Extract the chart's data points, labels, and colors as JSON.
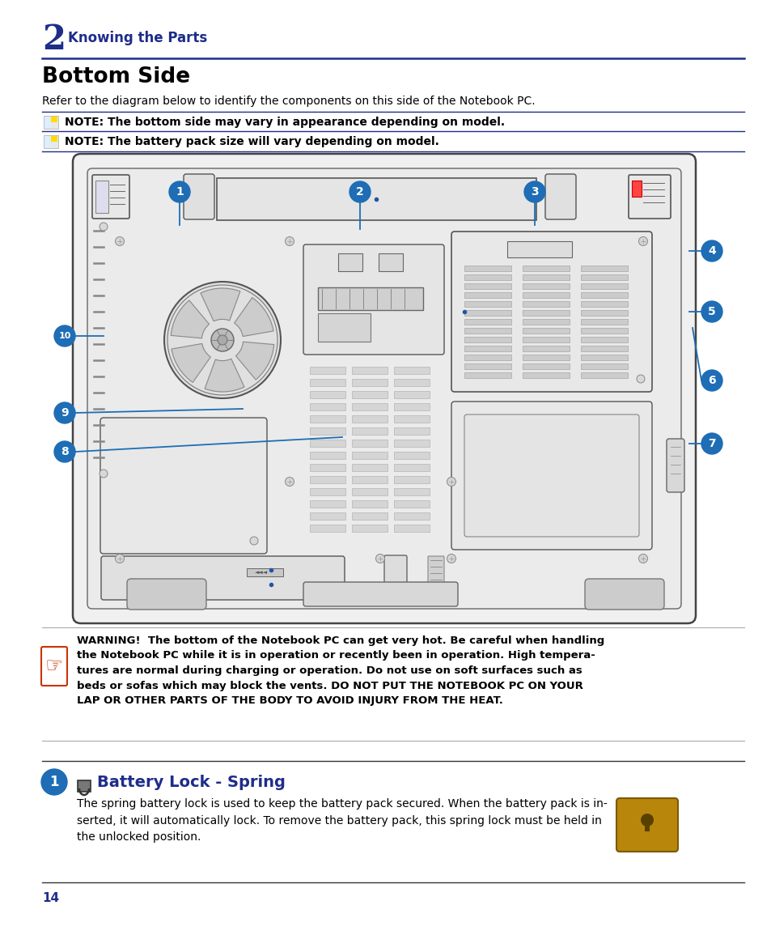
{
  "bg_color": "#ffffff",
  "page_width": 9.54,
  "page_height": 11.55,
  "chapter_number": "2",
  "chapter_title": "Knowing the Parts",
  "section_title": "Bottom Side",
  "section_subtitle": "Refer to the diagram below to identify the components on this side of the Notebook PC.",
  "note1_text": "NOTE: The bottom side may vary in appearance depending on model.",
  "note2_text": "NOTE: The battery pack size will vary depending on model.",
  "warning_text_lines": [
    "WARNING!  The bottom of the Notebook PC can get very hot. Be careful when handling",
    "the Notebook PC while it is in operation or recently been in operation. High tempera-",
    "tures are normal during charging or operation. Do not use on soft surfaces such as",
    "beds or sofas which may block the vents. DO NOT PUT THE NOTEBOOK PC ON YOUR",
    "LAP OR OTHER PARTS OF THE BODY TO AVOID INJURY FROM THE HEAT."
  ],
  "battery_lock_title": "Battery Lock - Spring",
  "battery_lock_text_lines": [
    "The spring battery lock is used to keep the battery pack secured. When the battery pack is in-",
    "serted, it will automatically lock. To remove the battery pack, this spring lock must be held in",
    "the unlocked position."
  ],
  "page_number": "14",
  "blue_dark": "#1e2d8a",
  "blue_label": "#1e6db5",
  "blue_line": "#1e2d8a",
  "text_black": "#000000",
  "line_dark": "#333333",
  "line_light": "#aaaaaa"
}
